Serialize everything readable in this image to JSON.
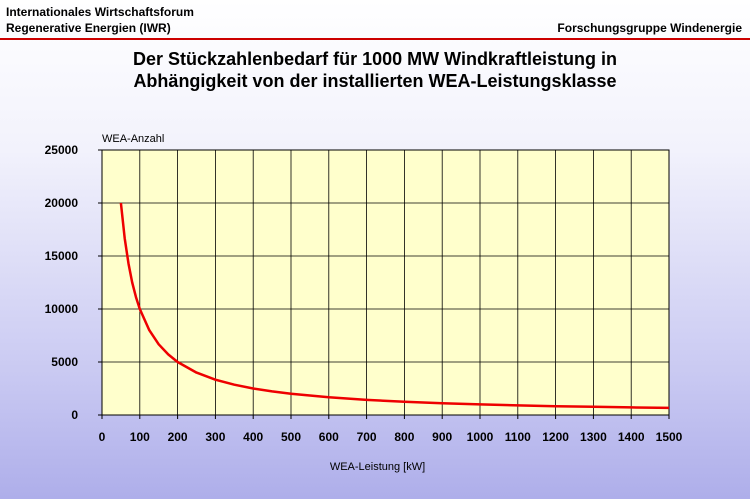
{
  "header": {
    "org_line1": "Internationales Wirtschaftsforum",
    "org_line2": "Regenerative Energien (IWR)",
    "right": "Forschungsgruppe Windenergie"
  },
  "colors": {
    "plot_bg": "#ffffcc",
    "line": "#ee0000",
    "header_rule": "#cc0000"
  },
  "chart_data": {
    "type": "line",
    "title_line1": "Der Stückzahlenbedarf für 1000 MW Windkraftleistung in",
    "title_line2": "Abhängigkeit von der installierten WEA-Leistungsklasse",
    "xlabel": "WEA-Leistung [kW]",
    "ylabel": "WEA-Anzahl",
    "xlim": [
      0,
      1500
    ],
    "ylim": [
      0,
      25000
    ],
    "xticks": [
      "0",
      "100",
      "200",
      "300",
      "400",
      "500",
      "600",
      "700",
      "800",
      "900",
      "1000",
      "1100",
      "1200",
      "1300",
      "1400",
      "1500"
    ],
    "yticks": [
      "0",
      "5000",
      "10000",
      "15000",
      "20000",
      "25000"
    ],
    "grid": true,
    "legend": "none",
    "series": [
      {
        "x": [
          50,
          60,
          70,
          80,
          90,
          100,
          125,
          150,
          175,
          200,
          250,
          300,
          350,
          400,
          450,
          500,
          600,
          700,
          800,
          900,
          1000,
          1100,
          1200,
          1300,
          1400,
          1500
        ],
        "values": [
          20000,
          16667,
          14286,
          12500,
          11111,
          10000,
          8000,
          6667,
          5714,
          5000,
          4000,
          3333,
          2857,
          2500,
          2222,
          2000,
          1667,
          1429,
          1250,
          1111,
          1000,
          909,
          833,
          769,
          714,
          667
        ]
      }
    ]
  }
}
